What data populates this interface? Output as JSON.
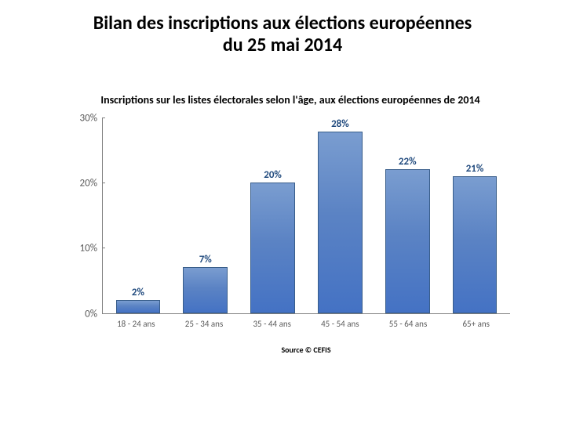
{
  "slide": {
    "main_title": "Bilan des inscriptions aux élections européennes du 25 mai 2014",
    "main_title_fontsize": 24,
    "main_title_color": "#000000"
  },
  "chart": {
    "type": "bar",
    "title": "Inscriptions sur les listes électorales selon l'âge, aux élections européennes de 2014",
    "title_fontsize": 14,
    "title_color": "#000000",
    "categories": [
      "18 - 24 ans",
      "25 - 34 ans",
      "35 - 44 ans",
      "45 - 54 ans",
      "55 - 64 ans",
      "65+ ans"
    ],
    "values": [
      2,
      7,
      20,
      28,
      22,
      21
    ],
    "value_labels": [
      "2%",
      "7%",
      "20%",
      "28%",
      "22%",
      "21%"
    ],
    "bar_fill_top": "#7a9dd0",
    "bar_fill_mid": "#5b83c4",
    "bar_fill_bottom": "#4472c4",
    "bar_border": "#385d8a",
    "data_label_color": "#1f497d",
    "data_label_fontsize": 13,
    "ylim": [
      0,
      30
    ],
    "ytick_step": 10,
    "ytick_labels": [
      "0%",
      "10%",
      "20%",
      "30%"
    ],
    "axis_color": "#808080",
    "tick_label_color": "#595959",
    "tick_label_fontsize": 13,
    "xtick_fontsize": 11,
    "background_color": "#ffffff",
    "bar_width": 0.66,
    "source": "Source © CEFIS",
    "source_fontsize": 10
  }
}
